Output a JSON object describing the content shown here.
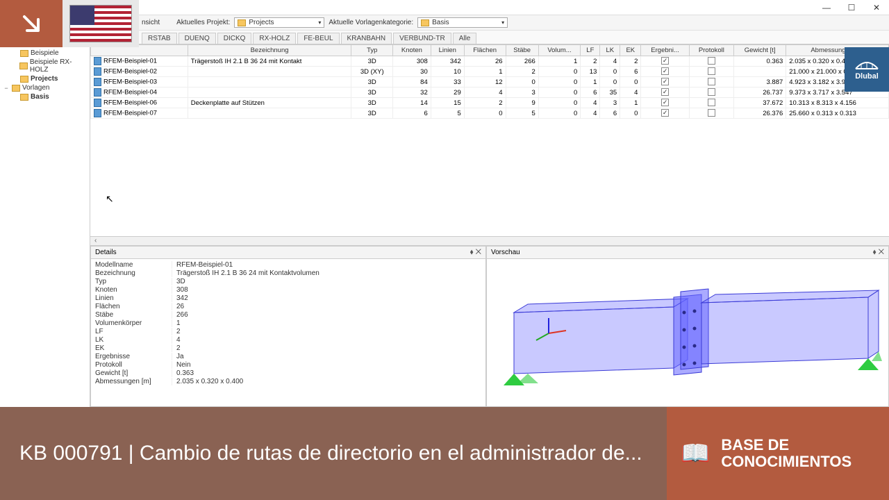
{
  "window": {
    "title_suffix": "nsicht"
  },
  "toolbar": {
    "projekt_label": "Aktuelles Projekt:",
    "projekt_value": "Projects",
    "vorlagen_label": "Aktuelle Vorlagenkategorie:",
    "vorlagen_value": "Basis"
  },
  "tabs": [
    "RSTAB",
    "DUENQ",
    "DICKQ",
    "RX-HOLZ",
    "FE-BEUL",
    "KRANBAHN",
    "VERBUND-TR",
    "Alle"
  ],
  "active_tab": 0,
  "tree": [
    {
      "label": "Beispiele",
      "indent": 1,
      "bold": false
    },
    {
      "label": "Beispiele RX-HOLZ",
      "indent": 1,
      "bold": false
    },
    {
      "label": "Projects",
      "indent": 1,
      "bold": true
    },
    {
      "label": "Vorlagen",
      "indent": 0,
      "bold": false,
      "expander": "−"
    },
    {
      "label": "Basis",
      "indent": 1,
      "bold": true
    }
  ],
  "table": {
    "columns": [
      "",
      "Bezeichnung",
      "Typ",
      "Knoten",
      "Linien",
      "Flächen",
      "Stäbe",
      "Volum...",
      "LF",
      "LK",
      "EK",
      "Ergebni...",
      "Protokoll",
      "Gewicht [t]",
      "Abmessungen [m]"
    ],
    "rows": [
      {
        "name": "RFEM-Beispiel-01",
        "bez": "Trägerstoß IH 2.1 B 36 24 mit Kontakt",
        "typ": "3D",
        "knoten": 308,
        "linien": 342,
        "flachen": 26,
        "stabe": 266,
        "vol": 1,
        "lf": 2,
        "lk": 4,
        "ek": 2,
        "erg": true,
        "prot": false,
        "gew": "0.363",
        "abm": "2.035 x 0.320 x 0.400"
      },
      {
        "name": "RFEM-Beispiel-02",
        "bez": "",
        "typ": "3D (XY)",
        "knoten": 30,
        "linien": 10,
        "flachen": 1,
        "stabe": 2,
        "vol": 0,
        "lf": 13,
        "lk": 0,
        "ek": 6,
        "erg": true,
        "prot": false,
        "gew": "",
        "abm": "21.000 x 21.000 x 0.56"
      },
      {
        "name": "RFEM-Beispiel-03",
        "bez": "",
        "typ": "3D",
        "knoten": 84,
        "linien": 33,
        "flachen": 12,
        "stabe": 0,
        "vol": 0,
        "lf": 1,
        "lk": 0,
        "ek": 0,
        "erg": true,
        "prot": false,
        "gew": "3.887",
        "abm": "4.923 x 3.182 x 3.962"
      },
      {
        "name": "RFEM-Beispiel-04",
        "bez": "",
        "typ": "3D",
        "knoten": 32,
        "linien": 29,
        "flachen": 4,
        "stabe": 3,
        "vol": 0,
        "lf": 6,
        "lk": 35,
        "ek": 4,
        "erg": true,
        "prot": false,
        "gew": "26.737",
        "abm": "9.373 x 3.717 x 3.547"
      },
      {
        "name": "RFEM-Beispiel-06",
        "bez": "Deckenplatte auf Stützen",
        "typ": "3D",
        "knoten": 14,
        "linien": 15,
        "flachen": 2,
        "stabe": 9,
        "vol": 0,
        "lf": 4,
        "lk": 3,
        "ek": 1,
        "erg": true,
        "prot": false,
        "gew": "37.672",
        "abm": "10.313 x 8.313 x 4.156"
      },
      {
        "name": "RFEM-Beispiel-07",
        "bez": "",
        "typ": "3D",
        "knoten": 6,
        "linien": 5,
        "flachen": 0,
        "stabe": 5,
        "vol": 0,
        "lf": 4,
        "lk": 6,
        "ek": 0,
        "erg": true,
        "prot": false,
        "gew": "26.376",
        "abm": "25.660 x 0.313 x 0.313"
      }
    ]
  },
  "details": {
    "header": "Details",
    "rows": [
      [
        "Modellname",
        "RFEM-Beispiel-01"
      ],
      [
        "Bezeichnung",
        "Trägerstoß IH 2.1 B 36 24 mit Kontaktvolumen"
      ],
      [
        "Typ",
        "3D"
      ],
      [
        "Knoten",
        "308"
      ],
      [
        "Linien",
        "342"
      ],
      [
        "Flächen",
        "26"
      ],
      [
        "Stäbe",
        "266"
      ],
      [
        "Volumenkörper",
        "1"
      ],
      [
        "LF",
        "2"
      ],
      [
        "LK",
        "4"
      ],
      [
        "EK",
        "2"
      ],
      [
        "Ergebnisse",
        "Ja"
      ],
      [
        "Protokoll",
        "Nein"
      ],
      [
        "Gewicht [t]",
        "0.363"
      ],
      [
        "Abmessungen [m]",
        "2.035 x 0.320 x 0.400"
      ]
    ]
  },
  "preview": {
    "header": "Vorschau"
  },
  "dlubal": "Dlubal",
  "footer": {
    "title": "KB 000791 | Cambio de rutas de directorio en el administrador de...",
    "kb_label1": "BASE DE",
    "kb_label2": "CONOCIMIENTOS"
  },
  "colors": {
    "accent": "#b35b3f",
    "footer_bg": "#8a6253",
    "dlubal": "#2d5f8e",
    "beam_fill": "rgba(100,100,255,0.35)",
    "beam_stroke": "#3a3ad6",
    "support": "#2ecc40"
  }
}
